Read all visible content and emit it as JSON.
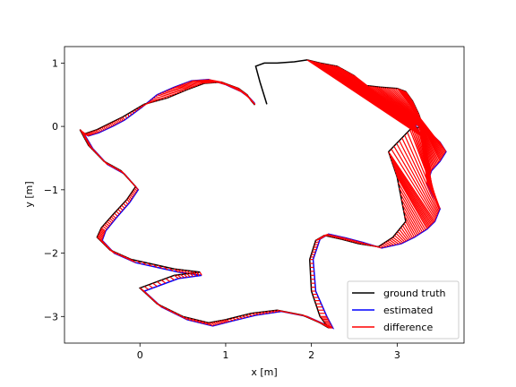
{
  "chart_data": {
    "type": "line",
    "xlabel": "x [m]",
    "ylabel": "y [m]",
    "xlim": [
      -0.88,
      3.78
    ],
    "ylim": [
      -3.42,
      1.26
    ],
    "xticks": [
      0,
      1,
      2,
      3
    ],
    "yticks": [
      1,
      0,
      -1,
      -2,
      -3
    ],
    "tick_labels": {
      "x": [
        "0",
        "1",
        "2",
        "3"
      ],
      "y": [
        "1",
        "0",
        "−1",
        "−2",
        "−3"
      ]
    },
    "grid": false,
    "legend": {
      "placement": "lower-right",
      "entries": [
        "ground truth",
        "estimated",
        "difference"
      ]
    },
    "series": [
      {
        "name": "ground truth",
        "color": "#000000",
        "x": [
          1.34,
          1.3,
          1.25,
          1.15,
          0.95,
          0.75,
          0.55,
          0.32,
          0.05,
          -0.2,
          -0.35,
          -0.5,
          -0.65,
          -0.7,
          -0.6,
          -0.42,
          -0.22,
          -0.05,
          -0.15,
          -0.32,
          -0.45,
          -0.5,
          -0.35,
          -0.1,
          0.4,
          0.7,
          0.4,
          0.0,
          0.2,
          0.5,
          0.8,
          1.0,
          1.3,
          1.6,
          1.9,
          2.1,
          2.2,
          2.1,
          2.0,
          1.98,
          2.05,
          2.15,
          2.35,
          2.55,
          2.78,
          2.95,
          3.1,
          3.0,
          2.9,
          3.15,
          3.3,
          3.25,
          3.18,
          3.1,
          3.0,
          2.8,
          2.6,
          2.5,
          2.3,
          2.1,
          1.95,
          1.8,
          1.6,
          1.45,
          1.35,
          1.4,
          1.48
        ],
        "y": [
          0.34,
          0.4,
          0.5,
          0.6,
          0.7,
          0.68,
          0.58,
          0.45,
          0.35,
          0.15,
          0.05,
          -0.05,
          -0.12,
          -0.05,
          -0.3,
          -0.55,
          -0.7,
          -0.95,
          -1.15,
          -1.4,
          -1.6,
          -1.75,
          -1.95,
          -2.1,
          -2.25,
          -2.3,
          -2.35,
          -2.55,
          -2.8,
          -3.0,
          -3.1,
          -3.05,
          -2.95,
          -2.9,
          -2.98,
          -3.1,
          -3.18,
          -3.0,
          -2.6,
          -2.1,
          -1.8,
          -1.72,
          -1.78,
          -1.85,
          -1.9,
          -1.75,
          -1.5,
          -0.8,
          -0.4,
          -0.05,
          0.0,
          0.2,
          0.4,
          0.55,
          0.6,
          0.62,
          0.65,
          0.8,
          0.95,
          1.0,
          1.05,
          1.02,
          1.0,
          1.0,
          0.95,
          0.7,
          0.35
        ]
      },
      {
        "name": "estimated",
        "color": "#0000ff",
        "x": [
          1.34,
          1.28,
          1.18,
          1.0,
          0.8,
          0.6,
          0.4,
          0.2,
          0.02,
          -0.18,
          -0.32,
          -0.48,
          -0.6,
          -0.66,
          -0.55,
          -0.38,
          -0.18,
          -0.02,
          -0.12,
          -0.28,
          -0.4,
          -0.44,
          -0.3,
          -0.05,
          0.45,
          0.72,
          0.45,
          0.05,
          0.25,
          0.55,
          0.85,
          1.05,
          1.35,
          1.65,
          1.95,
          2.15,
          2.25,
          2.18,
          2.05,
          2.02,
          2.1,
          2.2,
          2.4,
          2.6,
          2.82,
          3.05,
          3.2,
          3.35,
          3.44,
          3.5,
          3.42,
          3.35,
          3.4,
          3.5,
          3.57,
          3.5,
          3.4,
          3.28,
          3.2,
          3.22,
          3.28
        ],
        "y": [
          0.36,
          0.45,
          0.55,
          0.66,
          0.74,
          0.72,
          0.62,
          0.5,
          0.3,
          0.1,
          0.0,
          -0.1,
          -0.15,
          -0.1,
          -0.35,
          -0.6,
          -0.75,
          -1.0,
          -1.2,
          -1.45,
          -1.65,
          -1.8,
          -2.0,
          -2.15,
          -2.3,
          -2.35,
          -2.4,
          -2.6,
          -2.85,
          -3.05,
          -3.15,
          -3.08,
          -2.98,
          -2.92,
          -3.0,
          -3.12,
          -3.18,
          -3.0,
          -2.6,
          -2.1,
          -1.78,
          -1.7,
          -1.76,
          -1.83,
          -1.92,
          -1.85,
          -1.75,
          -1.62,
          -1.5,
          -1.3,
          -1.1,
          -0.9,
          -0.7,
          -0.55,
          -0.4,
          -0.25,
          -0.12,
          -0.02,
          0.05,
          0.0,
          -0.15
        ]
      }
    ]
  }
}
